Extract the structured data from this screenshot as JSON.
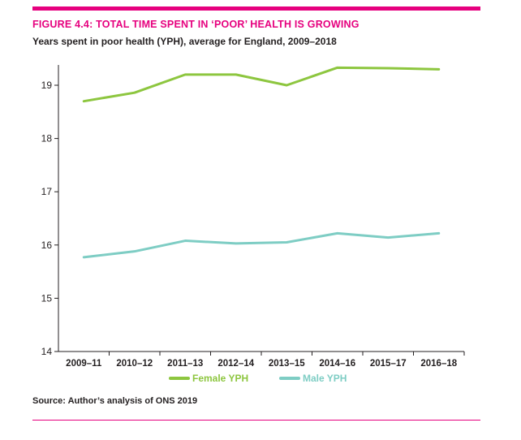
{
  "header": {
    "figure_title": "FIGURE 4.4: TOTAL TIME SPENT IN ‘POOR’ HEALTH IS GROWING",
    "subtitle": "Years spent in poor health (YPH), average for England, 2009–2018"
  },
  "footer": {
    "source": "Source: Author’s analysis of ONS 2019"
  },
  "colors": {
    "accent": "#e6007e",
    "female": "#8dc63f",
    "male": "#7ecdc4",
    "axis": "#231f20",
    "text": "#231f20"
  },
  "chart_data": {
    "type": "line",
    "title": "FIGURE 4.4: TOTAL TIME SPENT IN ‘POOR’ HEALTH IS GROWING",
    "subtitle": "Years spent in poor health (YPH), average for England, 2009–2018",
    "xlabel": "",
    "ylabel": "",
    "categories": [
      "2009–11",
      "2010–12",
      "2011–13",
      "2012–14",
      "2013–15",
      "2014–16",
      "2015–17",
      "2016–18"
    ],
    "series": [
      {
        "name": "Female YPH",
        "color": "#8dc63f",
        "values": [
          18.7,
          18.86,
          19.2,
          19.2,
          19.0,
          19.33,
          19.32,
          19.3
        ]
      },
      {
        "name": "Male YPH",
        "color": "#7ecdc4",
        "values": [
          15.77,
          15.88,
          16.08,
          16.03,
          16.05,
          16.22,
          16.14,
          16.22
        ]
      }
    ],
    "ylim": [
      14,
      19.5
    ],
    "yticks": [
      14,
      15,
      16,
      17,
      18,
      19
    ],
    "grid": false,
    "legend_position": "bottom"
  }
}
